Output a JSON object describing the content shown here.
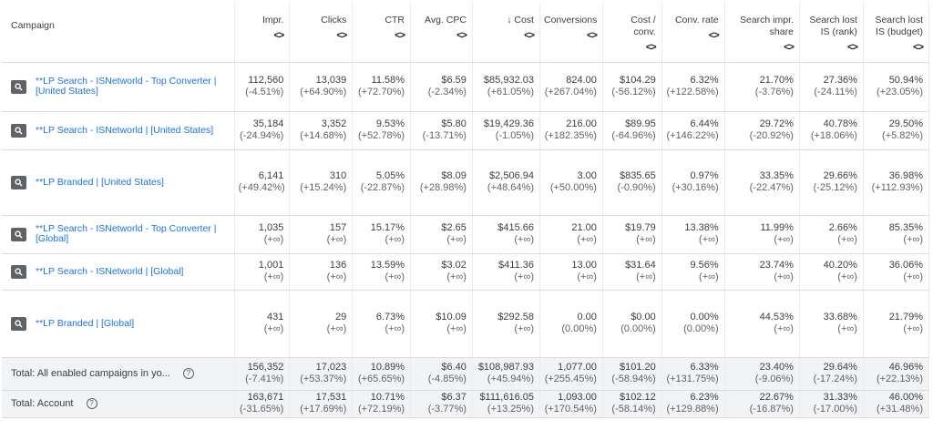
{
  "headers": [
    {
      "label": "Campaign",
      "sort": ""
    },
    {
      "label": "Impr.",
      "sort": "<>"
    },
    {
      "label": "Clicks",
      "sort": "<>"
    },
    {
      "label": "CTR",
      "sort": "<>"
    },
    {
      "label": "Avg. CPC",
      "sort": "<>"
    },
    {
      "label": "↓ Cost",
      "sort": "<>"
    },
    {
      "label": "Conversions",
      "sort": "<>"
    },
    {
      "label": "Cost / conv.",
      "sort": "<>"
    },
    {
      "label": "Conv. rate",
      "sort": "<>"
    },
    {
      "label": "Search impr. share",
      "sort": "<>"
    },
    {
      "label": "Search lost IS (rank)",
      "sort": "<>"
    },
    {
      "label": "Search lost IS (budget)",
      "sort": "<>"
    }
  ],
  "rows": [
    {
      "campaign": "**LP Search - ISNetworld - Top Converter | [United States]",
      "cells": [
        [
          "112,560",
          "(-4.51%)"
        ],
        [
          "13,039",
          "(+64.90%)"
        ],
        [
          "11.58%",
          "(+72.70%)"
        ],
        [
          "$6.59",
          "(-2.34%)"
        ],
        [
          "$85,932.03",
          "(+61.05%)"
        ],
        [
          "824.00",
          "(+267.04%)"
        ],
        [
          "$104.29",
          "(-56.12%)"
        ],
        [
          "6.32%",
          "(+122.58%)"
        ],
        [
          "21.70%",
          "(-3.76%)"
        ],
        [
          "27.36%",
          "(-24.11%)"
        ],
        [
          "50.94%",
          "(+23.05%)"
        ]
      ]
    },
    {
      "campaign": "**LP Search - ISNetworld | [United States]",
      "cells": [
        [
          "35,184",
          "(-24.94%)"
        ],
        [
          "3,352",
          "(+14.68%)"
        ],
        [
          "9.53%",
          "(+52.78%)"
        ],
        [
          "$5.80",
          "(-13.71%)"
        ],
        [
          "$19,429.36",
          "(-1.05%)"
        ],
        [
          "216.00",
          "(+182.35%)"
        ],
        [
          "$89.95",
          "(-64.96%)"
        ],
        [
          "6.44%",
          "(+146.22%)"
        ],
        [
          "29.72%",
          "(-20.92%)"
        ],
        [
          "40.78%",
          "(+18.06%)"
        ],
        [
          "29.50%",
          "(+5.82%)"
        ]
      ]
    },
    {
      "campaign": "**LP Branded | [United States]",
      "cells": [
        [
          "6,141",
          "(+49.42%)"
        ],
        [
          "310",
          "(+15.24%)"
        ],
        [
          "5.05%",
          "(-22.87%)"
        ],
        [
          "$8.09",
          "(+28.98%)"
        ],
        [
          "$2,506.94",
          "(+48.64%)"
        ],
        [
          "3.00",
          "(+50.00%)"
        ],
        [
          "$835.65",
          "(-0.90%)"
        ],
        [
          "0.97%",
          "(+30.16%)"
        ],
        [
          "33.35%",
          "(-22.47%)"
        ],
        [
          "29.66%",
          "(-25.12%)"
        ],
        [
          "36.98%",
          "(+112.93%)"
        ]
      ]
    },
    {
      "campaign": "**LP Search - ISNetworld - Top Converter | [Global]",
      "cells": [
        [
          "1,035",
          "(+∞)"
        ],
        [
          "157",
          "(+∞)"
        ],
        [
          "15.17%",
          "(+∞)"
        ],
        [
          "$2.65",
          "(+∞)"
        ],
        [
          "$415.66",
          "(+∞)"
        ],
        [
          "21.00",
          "(+∞)"
        ],
        [
          "$19.79",
          "(+∞)"
        ],
        [
          "13.38%",
          "(+∞)"
        ],
        [
          "11.99%",
          "(+∞)"
        ],
        [
          "2.66%",
          "(+∞)"
        ],
        [
          "85.35%",
          "(+∞)"
        ]
      ]
    },
    {
      "campaign": "**LP Search - ISNetworld | [Global]",
      "cells": [
        [
          "1,001",
          "(+∞)"
        ],
        [
          "136",
          "(+∞)"
        ],
        [
          "13.59%",
          "(+∞)"
        ],
        [
          "$3.02",
          "(+∞)"
        ],
        [
          "$411.36",
          "(+∞)"
        ],
        [
          "13.00",
          "(+∞)"
        ],
        [
          "$31.64",
          "(+∞)"
        ],
        [
          "9.56%",
          "(+∞)"
        ],
        [
          "23.74%",
          "(+∞)"
        ],
        [
          "40.20%",
          "(+∞)"
        ],
        [
          "36.06%",
          "(+∞)"
        ]
      ]
    },
    {
      "campaign": "**LP Branded | [Global]",
      "cells": [
        [
          "431",
          "(+∞)"
        ],
        [
          "29",
          "(+∞)"
        ],
        [
          "6.73%",
          "(+∞)"
        ],
        [
          "$10.09",
          "(+∞)"
        ],
        [
          "$292.58",
          "(+∞)"
        ],
        [
          "0.00",
          "(0.00%)"
        ],
        [
          "$0.00",
          "(0.00%)"
        ],
        [
          "0.00%",
          "(0.00%)"
        ],
        [
          "44.53%",
          "(+∞)"
        ],
        [
          "33.68%",
          "(+∞)"
        ],
        [
          "21.79%",
          "(+∞)"
        ]
      ]
    }
  ],
  "totals": [
    {
      "label": "Total: All enabled campaigns in yo...",
      "cells": [
        [
          "156,352",
          "(-7.41%)"
        ],
        [
          "17,023",
          "(+53.37%)"
        ],
        [
          "10.89%",
          "(+65.65%)"
        ],
        [
          "$6.40",
          "(-4.85%)"
        ],
        [
          "$108,987.93",
          "(+45.94%)"
        ],
        [
          "1,077.00",
          "(+255.45%)"
        ],
        [
          "$101.20",
          "(-58.94%)"
        ],
        [
          "6.33%",
          "(+131.75%)"
        ],
        [
          "23.40%",
          "(-9.06%)"
        ],
        [
          "29.64%",
          "(-17.24%)"
        ],
        [
          "46.96%",
          "(+22.13%)"
        ]
      ]
    },
    {
      "label": "Total: Account",
      "cells": [
        [
          "163,671",
          "(-31.65%)"
        ],
        [
          "17,531",
          "(+17.69%)"
        ],
        [
          "10.71%",
          "(+72.19%)"
        ],
        [
          "$6.37",
          "(-3.77%)"
        ],
        [
          "$111,616.05",
          "(+13.25%)"
        ],
        [
          "1,093.00",
          "(+170.54%)"
        ],
        [
          "$102.12",
          "(-58.14%)"
        ],
        [
          "6.23%",
          "(+129.88%)"
        ],
        [
          "22.67%",
          "(-16.87%)"
        ],
        [
          "31.33%",
          "(-17.00%)"
        ],
        [
          "46.00%",
          "(+31.48%)"
        ]
      ]
    }
  ],
  "icons": {
    "campaign_row": "search-campaign-icon",
    "help": "help-icon"
  },
  "help_glyph": "?",
  "colors": {
    "link": "#1a73e8",
    "total_bg": "#f1f3f4",
    "border": "#dadce0",
    "icon_bg": "#5f6368"
  }
}
